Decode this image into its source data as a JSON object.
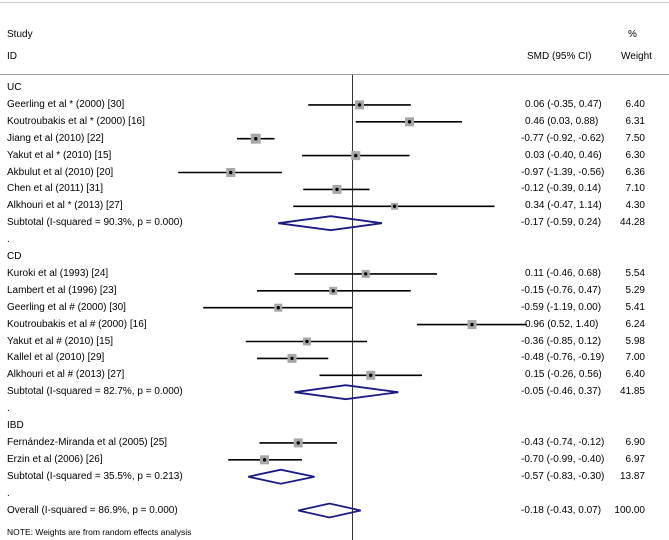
{
  "header": {
    "study": "Study",
    "id": "ID",
    "percent": "%",
    "smd": "SMD (95% CI)",
    "weight": "Weight"
  },
  "spacer": ".",
  "note": "NOTE: Weights are from random effects analysis",
  "colors": {
    "diamond": "#1b1b84",
    "marker_box": "#a8a8a8",
    "marker_dot": "#000000",
    "ci_line": "#000000",
    "zero_line": "#333333",
    "rule": "#9a9a9a"
  },
  "chart_data": {
    "type": "scatter",
    "subtype": "forest-plot",
    "effect_measure": "SMD (95% CI)",
    "x_zero_line": 0,
    "x_range": [
      -1.5,
      1.55
    ],
    "grid": false,
    "groups": [
      {
        "name": "UC",
        "studies": [
          {
            "label": "Geerling et al * (2000) [30]",
            "smd": 0.06,
            "ci": [
              -0.35,
              0.47
            ],
            "smd_text": "0.06 (-0.35, 0.47)",
            "weight": "6.40"
          },
          {
            "label": "Koutroubakis et al * (2000) [16]",
            "smd": 0.46,
            "ci": [
              0.03,
              0.88
            ],
            "smd_text": "0.46 (0.03, 0.88)",
            "weight": "6.31"
          },
          {
            "label": "Jiang et al (2010) [22]",
            "smd": -0.77,
            "ci": [
              -0.92,
              -0.62
            ],
            "smd_text": "-0.77 (-0.92, -0.62)",
            "weight": "7.50"
          },
          {
            "label": "Yakut et al * (2010) [15]",
            "smd": 0.03,
            "ci": [
              -0.4,
              0.46
            ],
            "smd_text": "0.03 (-0.40, 0.46)",
            "weight": "6.30"
          },
          {
            "label": "Akbulut et al (2010) [20]",
            "smd": -0.97,
            "ci": [
              -1.39,
              -0.56
            ],
            "smd_text": "-0.97 (-1.39, -0.56)",
            "weight": "6.36"
          },
          {
            "label": "Chen et al (2011) [31]",
            "smd": -0.12,
            "ci": [
              -0.39,
              0.14
            ],
            "smd_text": "-0.12 (-0.39, 0.14)",
            "weight": "7.10"
          },
          {
            "label": "Alkhouri et al * (2013) [27]",
            "smd": 0.34,
            "ci": [
              -0.47,
              1.14
            ],
            "smd_text": "0.34 (-0.47, 1.14)",
            "weight": "4.30"
          }
        ],
        "subtotal": {
          "label": "Subtotal  (I-squared = 90.3%, p = 0.000)",
          "smd": -0.17,
          "ci": [
            -0.59,
            0.24
          ],
          "smd_text": "-0.17 (-0.59, 0.24)",
          "weight": "44.28"
        }
      },
      {
        "name": "CD",
        "studies": [
          {
            "label": "Kuroki et al (1993) [24]",
            "smd": 0.11,
            "ci": [
              -0.46,
              0.68
            ],
            "smd_text": "0.11 (-0.46, 0.68)",
            "weight": "5.54"
          },
          {
            "label": "Lambert et al (1996) [23]",
            "smd": -0.15,
            "ci": [
              -0.76,
              0.47
            ],
            "smd_text": "-0.15 (-0.76, 0.47)",
            "weight": "5.29"
          },
          {
            "label": "Geerling et al # (2000) [30]",
            "smd": -0.59,
            "ci": [
              -1.19,
              0.0
            ],
            "smd_text": "-0.59 (-1.19, 0.00)",
            "weight": "5.41"
          },
          {
            "label": "Koutroubakis et al # (2000) [16]",
            "smd": 0.96,
            "ci": [
              0.52,
              1.4
            ],
            "smd_text": "0.96 (0.52, 1.40)",
            "weight": "6.24"
          },
          {
            "label": "Yakut et al # (2010) [15]",
            "smd": -0.36,
            "ci": [
              -0.85,
              0.12
            ],
            "smd_text": "-0.36 (-0.85, 0.12)",
            "weight": "5.98"
          },
          {
            "label": "Kallel et al (2010) [29]",
            "smd": -0.48,
            "ci": [
              -0.76,
              -0.19
            ],
            "smd_text": "-0.48 (-0.76, -0.19)",
            "weight": "7.00"
          },
          {
            "label": "Alkhouri et al # (2013) [27]",
            "smd": 0.15,
            "ci": [
              -0.26,
              0.56
            ],
            "smd_text": "0.15 (-0.26, 0.56)",
            "weight": "6.40"
          }
        ],
        "subtotal": {
          "label": "Subtotal  (I-squared = 82.7%, p = 0.000)",
          "smd": -0.05,
          "ci": [
            -0.46,
            0.37
          ],
          "smd_text": "-0.05 (-0.46, 0.37)",
          "weight": "41.85"
        }
      },
      {
        "name": "IBD",
        "studies": [
          {
            "label": "Fernández-Miranda et al (2005) [25]",
            "smd": -0.43,
            "ci": [
              -0.74,
              -0.12
            ],
            "smd_text": "-0.43 (-0.74, -0.12)",
            "weight": "6.90"
          },
          {
            "label": "Erzin et al (2006) [26]",
            "smd": -0.7,
            "ci": [
              -0.99,
              -0.4
            ],
            "smd_text": "-0.70 (-0.99, -0.40)",
            "weight": "6.97"
          }
        ],
        "subtotal": {
          "label": "Subtotal  (I-squared = 35.5%, p = 0.213)",
          "smd": -0.57,
          "ci": [
            -0.83,
            -0.3
          ],
          "smd_text": "-0.57 (-0.83, -0.30)",
          "weight": "13.87"
        }
      }
    ],
    "overall": {
      "label": "Overall  (I-squared = 86.9%, p = 0.000)",
      "smd": -0.18,
      "ci": [
        -0.43,
        0.07
      ],
      "smd_text": "-0.18 (-0.43, 0.07)",
      "weight": "100.00"
    }
  }
}
